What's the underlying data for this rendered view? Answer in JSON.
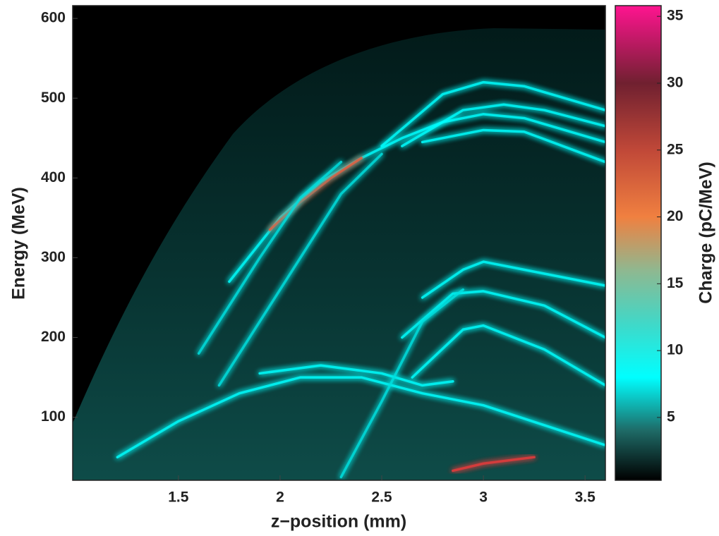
{
  "chart_data": {
    "type": "heatmap-traces",
    "xlabel": "z−position (mm)",
    "ylabel": "Energy (MeV)",
    "colorbar_label": "Charge (pC/MeV)",
    "xlim": [
      0.98,
      3.6
    ],
    "ylim": [
      21,
      616
    ],
    "xticks": [
      1.5,
      2,
      2.5,
      3,
      3.5
    ],
    "yticks": [
      100,
      200,
      300,
      400,
      500,
      600
    ],
    "clim": [
      0.3,
      35.8
    ],
    "cticks": [
      5,
      10,
      15,
      20,
      25,
      30,
      35
    ],
    "background": "#000000",
    "colormap": [
      {
        "value": 0.3,
        "color": "#000000"
      },
      {
        "value": 4,
        "color": "#1e6a66"
      },
      {
        "value": 8,
        "color": "#00ffff"
      },
      {
        "value": 12,
        "color": "#40d8c8"
      },
      {
        "value": 16,
        "color": "#8fb890"
      },
      {
        "value": 20,
        "color": "#f08040"
      },
      {
        "value": 25,
        "color": "#c04838"
      },
      {
        "value": 30,
        "color": "#702030"
      },
      {
        "value": 35.8,
        "color": "#ff1490"
      }
    ],
    "series": [
      {
        "color": "#00ffff",
        "x": [
          1.05,
          1.5,
          2.0,
          2.5,
          3.0,
          3.6
        ],
        "values": [
          25,
          25,
          25,
          25,
          25,
          25
        ]
      },
      {
        "color": "#00ffff",
        "x": [
          1.75,
          2.0,
          2.2,
          2.4,
          2.6,
          2.8,
          3.0,
          3.2,
          3.4,
          3.6
        ],
        "values": [
          270,
          350,
          395,
          425,
          450,
          470,
          480,
          475,
          460,
          445
        ]
      },
      {
        "color": "#e85a3a",
        "x": [
          1.95,
          2.1,
          2.25,
          2.4
        ],
        "values": [
          335,
          370,
          400,
          425
        ]
      },
      {
        "color": "#00ffff",
        "x": [
          2.5,
          2.8,
          3.0,
          3.2,
          3.4,
          3.6
        ],
        "values": [
          440,
          505,
          520,
          515,
          500,
          485
        ]
      },
      {
        "color": "#00ffff",
        "x": [
          2.6,
          2.9,
          3.1,
          3.3,
          3.6
        ],
        "values": [
          440,
          485,
          492,
          485,
          465
        ]
      },
      {
        "color": "#00ffff",
        "x": [
          2.7,
          3.0,
          3.2,
          3.6
        ],
        "values": [
          445,
          460,
          458,
          420
        ]
      },
      {
        "color": "#00ffff",
        "x": [
          2.7,
          2.9,
          3.0,
          3.2,
          3.6
        ],
        "values": [
          250,
          285,
          295,
          285,
          265
        ]
      },
      {
        "color": "#00ffff",
        "x": [
          2.6,
          2.85,
          3.0,
          3.3,
          3.6
        ],
        "values": [
          200,
          255,
          258,
          240,
          200
        ]
      },
      {
        "color": "#00ffff",
        "x": [
          2.65,
          2.9,
          3.0,
          3.3,
          3.6
        ],
        "values": [
          150,
          210,
          215,
          185,
          140
        ]
      },
      {
        "color": "#00ffff",
        "x": [
          1.2,
          1.5,
          1.8,
          2.1,
          2.4,
          2.7,
          3.0,
          3.3,
          3.6
        ],
        "values": [
          50,
          95,
          130,
          150,
          150,
          130,
          115,
          90,
          65
        ]
      },
      {
        "color": "#00ffff",
        "x": [
          1.9,
          2.2,
          2.5,
          2.7,
          2.85
        ],
        "values": [
          155,
          165,
          155,
          140,
          145
        ]
      },
      {
        "color": "#00e0e0",
        "x": [
          1.6,
          1.9,
          2.1,
          2.3
        ],
        "values": [
          180,
          300,
          375,
          420
        ]
      },
      {
        "color": "#00e0e0",
        "x": [
          1.7,
          2.0,
          2.3,
          2.5
        ],
        "values": [
          140,
          260,
          380,
          430
        ]
      },
      {
        "color": "#00e0e0",
        "x": [
          2.3,
          2.5,
          2.7,
          2.9
        ],
        "values": [
          25,
          120,
          220,
          260
        ]
      },
      {
        "color": "#e83a3a",
        "x": [
          2.85,
          3.0,
          3.25
        ],
        "values": [
          33,
          42,
          50
        ]
      }
    ]
  }
}
